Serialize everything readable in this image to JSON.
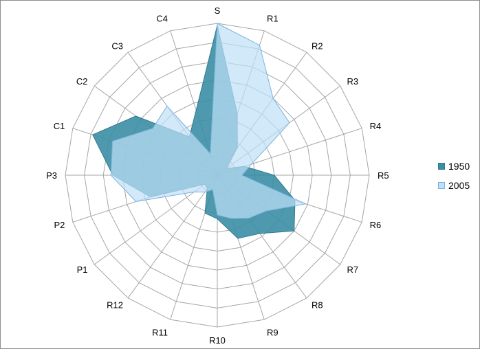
{
  "chart_data": {
    "type": "radar",
    "categories": [
      "S",
      "R1",
      "R2",
      "R3",
      "R4",
      "R5",
      "R6",
      "R7",
      "R8",
      "R9",
      "R10",
      "R11",
      "R12",
      "P1",
      "P2",
      "P3",
      "C1",
      "C2",
      "C3",
      "C4"
    ],
    "rmax": 8,
    "rings": 8,
    "grid": true,
    "legend_position": "right",
    "series": [
      {
        "name": "1950",
        "color": "#3b8ea5",
        "stroke": "#2f7a90",
        "opacity": 0.9,
        "values": [
          7.9,
          3.4,
          1.8,
          0.6,
          1.5,
          3.0,
          4.3,
          5.0,
          3.8,
          3.5,
          2.3,
          2.1,
          0.9,
          0.8,
          3.7,
          5.5,
          6.9,
          5.3,
          2.5,
          3.6
        ]
      },
      {
        "name": "2005",
        "color": "#bfe0f8",
        "stroke": "#7ab3dd",
        "opacity": 0.7,
        "values": [
          8.0,
          7.2,
          5.0,
          4.7,
          1.9,
          1.3,
          4.9,
          3.2,
          2.8,
          2.4,
          2.1,
          0.8,
          1.1,
          1.5,
          4.5,
          5.6,
          5.8,
          4.2,
          4.5,
          1.2
        ]
      }
    ]
  }
}
